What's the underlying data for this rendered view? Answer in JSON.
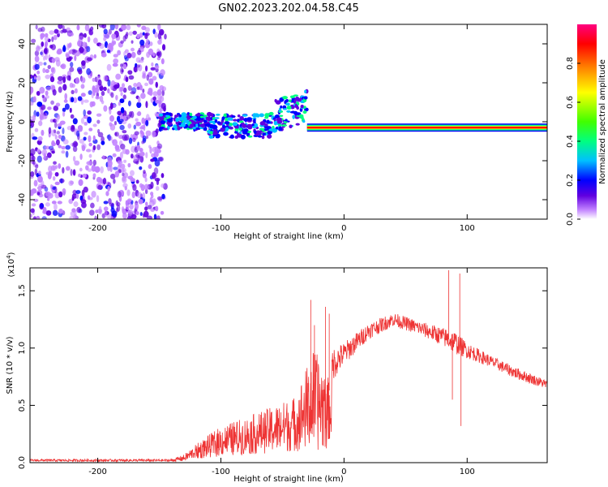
{
  "title": "GN02.2023.202.04.58.C45",
  "chart_data": [
    {
      "type": "heatmap",
      "name": "spectrogram",
      "xlabel": "Height of straight line (km)",
      "ylabel": "Frequency (Hz)",
      "xlim": [
        -255,
        165
      ],
      "ylim": [
        -50,
        50
      ],
      "xticks": [
        -200,
        -100,
        0,
        100
      ],
      "yticks": [
        -40,
        -20,
        0,
        20,
        40
      ],
      "noise_region_x": [
        -255,
        -145
      ],
      "turbulent_region_x": [
        -150,
        -30
      ],
      "steady_line_x": [
        -30,
        165
      ],
      "steady_line_frequency": -3,
      "colorbar": {
        "label": "Normalized spectral amplitude",
        "range": [
          0.0,
          1.0
        ],
        "ticks": [
          0.0,
          0.2,
          0.4,
          0.6,
          0.8
        ],
        "tick_labels": [
          "0.0",
          "0.2",
          "0.4",
          "0.6",
          "0.8"
        ],
        "colors": [
          "#ffffff",
          "#c080ff",
          "#6000e0",
          "#0000ff",
          "#00c0ff",
          "#00ff80",
          "#40ff00",
          "#ffff00",
          "#ff8000",
          "#ff0000",
          "#ff0080"
        ]
      }
    },
    {
      "type": "line",
      "name": "snr",
      "xlabel": "Height of straight line (km)",
      "ylabel": "SNR (10 * v/v)",
      "multiplier_label": "(x10",
      "multiplier_exp": "4",
      "multiplier_close": ")",
      "xlim": [
        -255,
        165
      ],
      "ylim": [
        0,
        1.7
      ],
      "xticks": [
        -200,
        -100,
        0,
        100
      ],
      "yticks": [
        0.0,
        0.5,
        1.0,
        1.5
      ],
      "ytick_labels": [
        "0.0",
        "0.5",
        "1.0",
        "1.5"
      ],
      "color": "#ee3333",
      "series_envelope": {
        "x": [
          -255,
          -140,
          -130,
          -120,
          -100,
          -80,
          -60,
          -40,
          -25,
          -15,
          -10,
          0,
          20,
          40,
          60,
          80,
          90,
          100,
          120,
          140,
          165
        ],
        "y": [
          0.02,
          0.02,
          0.04,
          0.1,
          0.18,
          0.22,
          0.28,
          0.32,
          0.35,
          0.3,
          0.85,
          0.95,
          1.15,
          1.25,
          1.18,
          1.1,
          1.05,
          0.98,
          0.88,
          0.78,
          0.68
        ],
        "amp": [
          0.01,
          0.01,
          0.03,
          0.06,
          0.12,
          0.15,
          0.18,
          0.22,
          0.4,
          0.35,
          0.15,
          0.1,
          0.07,
          0.06,
          0.06,
          0.08,
          0.1,
          0.07,
          0.05,
          0.05,
          0.04
        ]
      },
      "spikes": [
        {
          "x": -27,
          "y": 1.42
        },
        {
          "x": -24,
          "y": 1.2
        },
        {
          "x": -15,
          "y": 1.36
        },
        {
          "x": -12,
          "y": 1.3
        },
        {
          "x": 85,
          "y": 1.68
        },
        {
          "x": 88,
          "y": 0.55
        },
        {
          "x": 94,
          "y": 1.65
        },
        {
          "x": 95,
          "y": 0.32
        }
      ]
    }
  ]
}
